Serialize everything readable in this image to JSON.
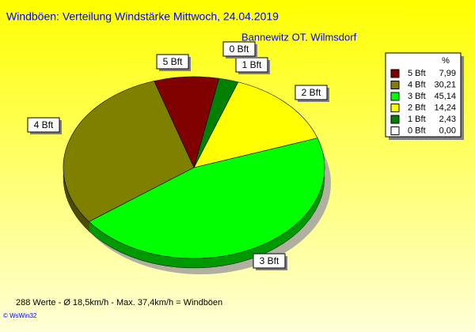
{
  "chart_data": {
    "type": "pie",
    "title": "Windböen: Verteilung Windstärke  Mittwoch, 24.04.2019",
    "subtitle": "Bannewitz OT. Wilmsdorf",
    "categories": [
      "5 Bft",
      "4 Bft",
      "3 Bft",
      "2 Bft",
      "1 Bft",
      "0 Bft"
    ],
    "values": [
      7.99,
      30.21,
      45.14,
      14.24,
      2.43,
      0.0
    ],
    "value_labels": [
      "7,99",
      "30,21",
      "45,14",
      "14,24",
      "2,43",
      "0,00"
    ],
    "colors": [
      "#800000",
      "#808000",
      "#00ff00",
      "#ffff00",
      "#008000",
      "#ffffff"
    ],
    "legend_title": "%",
    "footer": "288 Werte   -   Ø 18,5km/h  -  Max. 37,4km/h = Windböen",
    "credit": "© WsWin32"
  }
}
